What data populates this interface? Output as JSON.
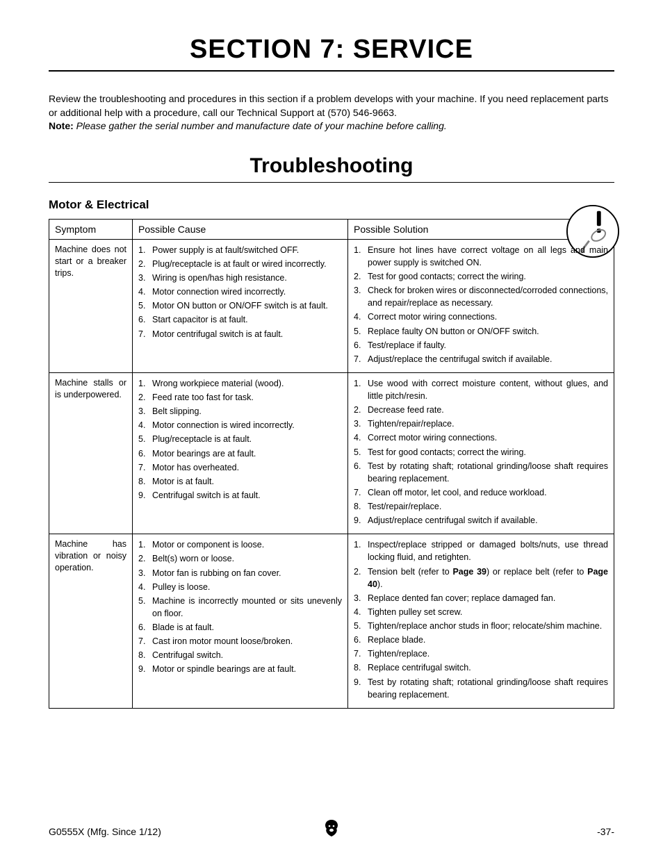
{
  "section_title": "SECTION 7: SERVICE",
  "intro_line1": "Review the troubleshooting and procedures in this section if a problem develops with your machine. If you need replacement parts or additional help with a procedure, call our Technical Support at (570) 546-9663.",
  "intro_note_label": "Note:",
  "intro_note_text": " Please gather the serial number and manufacture date of your machine before calling.",
  "subtitle": "Troubleshooting",
  "subheading": "Motor & Electrical",
  "headers": {
    "symptom": "Symptom",
    "cause": "Possible Cause",
    "solution": "Possible Solution"
  },
  "rows": [
    {
      "symptom": "Machine does not start or a breaker trips.",
      "causes": [
        "Power supply is at fault/switched OFF.",
        "Plug/receptacle is at fault or wired incorrectly.",
        "Wiring is open/has high resistance.",
        "Motor connection wired incorrectly.",
        "Motor ON button or ON/OFF switch is at fault.",
        "Start capacitor is at fault.",
        "Motor centrifugal switch is at fault."
      ],
      "solutions": [
        "Ensure hot lines have correct voltage on all legs and main power supply is switched ON.",
        "Test for good contacts; correct the wiring.",
        "Check for broken wires or disconnected/corroded connections, and repair/replace as necessary.",
        "Correct motor wiring connections.",
        "Replace faulty ON button or ON/OFF switch.",
        "Test/replace if faulty.",
        "Adjust/replace the centrifugal switch if available."
      ]
    },
    {
      "symptom": "Machine stalls or is underpowered.",
      "causes": [
        "Wrong workpiece material (wood).",
        "Feed rate too fast for task.",
        "Belt slipping.",
        "Motor connection is wired incorrectly.",
        "Plug/receptacle is at fault.",
        "Motor bearings are at fault.",
        "Motor has overheated.",
        "Motor is at fault.",
        "Centrifugal switch is at fault."
      ],
      "solutions": [
        "Use wood with correct moisture content, without glues, and little pitch/resin.",
        "Decrease feed rate.",
        "Tighten/repair/replace.",
        "Correct motor wiring connections.",
        "Test for good contacts; correct the wiring.",
        "Test by rotating shaft; rotational grinding/loose shaft requires bearing replacement.",
        "Clean off motor, let cool, and reduce workload.",
        "Test/repair/replace.",
        "Adjust/replace centrifugal switch if available."
      ]
    },
    {
      "symptom": "Machine has vibration or noisy operation.",
      "causes": [
        "Motor or component is loose.",
        "Belt(s) worn or loose.",
        "Motor fan is rubbing on fan cover.",
        "Pulley is loose.",
        "Machine is incorrectly mounted or sits unevenly on floor.",
        "Blade is at fault.",
        "Cast iron motor mount loose/broken.",
        "Centrifugal switch.",
        "Motor or spindle bearings are at fault."
      ],
      "solutions_html": [
        "Inspect/replace stripped or damaged bolts/nuts, use thread locking fluid, and retighten.",
        "Tension belt (refer to <b>Page 39</b>) or replace belt (refer to <b>Page 40</b>).",
        "Replace dented fan cover; replace damaged fan.",
        "Tighten pulley set screw.",
        "Tighten/replace anchor studs in floor; relocate/shim machine.",
        "Replace blade.",
        "Tighten/replace.",
        "Replace centrifugal switch.",
        "Test by rotating shaft; rotational grinding/loose shaft requires bearing replacement."
      ]
    }
  ],
  "footer": {
    "left": "G0555X (Mfg. Since 1/12)",
    "right": "-37-"
  },
  "colors": {
    "text": "#000000",
    "background": "#ffffff",
    "rule": "#000000"
  }
}
